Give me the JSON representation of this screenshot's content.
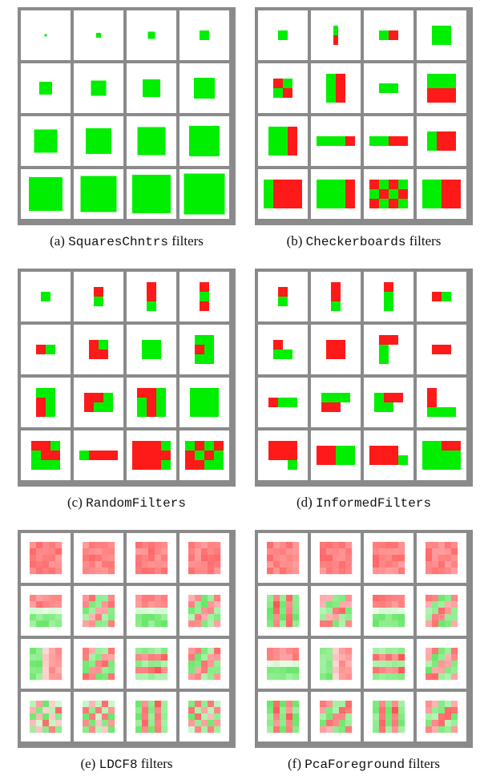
{
  "colors": {
    "green": "#00ee00",
    "red": "#ff1a1a",
    "frame": "#8a8a8a",
    "cell_bg": "#ffffff"
  },
  "panels": [
    {
      "id": "a",
      "label": "(a)",
      "code": "SquaresChntrs",
      "suffix": "filters",
      "cells": [
        {
          "r": [
            [
              0,
              "G"
            ]
          ]
        },
        {
          "r": [
            [
              0,
              "GG"
            ]
          ]
        },
        {
          "r": [
            [
              0,
              "GGG"
            ]
          ]
        },
        {
          "r": [
            [
              0,
              "GGGG"
            ]
          ]
        },
        {
          "r": [
            [
              "sq",
              5
            ]
          ]
        },
        {
          "r": [
            [
              "sq",
              6
            ]
          ]
        },
        {
          "r": [
            [
              "sq",
              7
            ]
          ]
        },
        {
          "r": [
            [
              "sq",
              8
            ]
          ]
        },
        {
          "r": [
            [
              "sq",
              9
            ]
          ]
        },
        {
          "r": [
            [
              "sq",
              10
            ]
          ]
        },
        {
          "r": [
            [
              "sq",
              11
            ]
          ]
        },
        {
          "r": [
            [
              "sq",
              12
            ]
          ]
        },
        {
          "r": [
            [
              "sq",
              13
            ]
          ]
        },
        {
          "r": [
            [
              "sq",
              14
            ]
          ]
        },
        {
          "r": [
            [
              "sq",
              15
            ]
          ]
        },
        {
          "r": [
            [
              "sq",
              16
            ]
          ]
        }
      ]
    },
    {
      "id": "b",
      "label": "(b)",
      "code": "Checkerboards",
      "suffix": "filters"
    },
    {
      "id": "c",
      "label": "(c)",
      "code": "RandomFilters",
      "suffix": ""
    },
    {
      "id": "d",
      "label": "(d)",
      "code": "InformedFilters",
      "suffix": ""
    },
    {
      "id": "e",
      "label": "(e)",
      "code": "LDCF8",
      "suffix": "filters"
    },
    {
      "id": "f",
      "label": "(f)",
      "code": "PcaForeground",
      "suffix": "filters"
    }
  ]
}
